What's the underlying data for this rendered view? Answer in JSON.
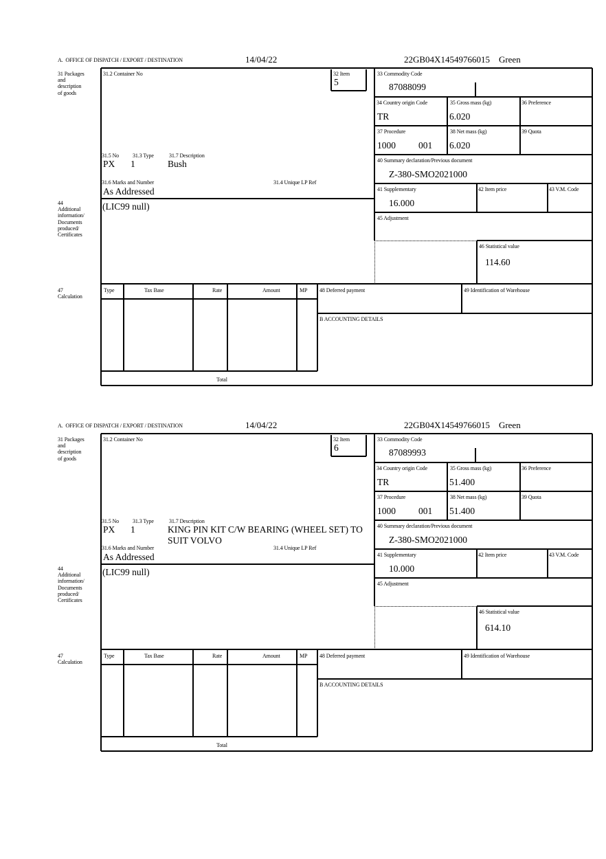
{
  "labels": {
    "office": "A.  OFFICE OF DISPATCH / EXPORT / DESTINATION",
    "packages": "31 Packages\nand\ndescription\nof goods",
    "container_no": "31.2 Container No",
    "item": "32 Item",
    "no": "31.5 No",
    "type": "31.3 Type",
    "description": "31.7 Description",
    "marks": "31.6 Marks and Number",
    "unique_lp_ref": "31.4 Unique LP Ref",
    "additional_info": "44\nAdditional\ninformation/\nDocuments\nproduced/\nCertificates",
    "commodity_code": "33 Commodity Code",
    "country_origin": "34 Country origin Code",
    "gross_mass": "35 Gross mass (kg)",
    "preference": "36 Preference",
    "procedure": "37 Procedure",
    "net_mass": "38 Net mass (kg)",
    "quota": "39 Quota",
    "summary_decl": "40 Summary declaration/Previous document",
    "supplementary": "41 Supplementary",
    "item_price": "42 Item price",
    "vm_code": "43 V.M. Code",
    "adjustment": "45 Adjustment",
    "statistical_value": "46 Statistical value",
    "calculation": "47\nCalculation",
    "calc_type": "Type",
    "calc_tax_base": "Tax Base",
    "calc_rate": "Rate",
    "calc_amount": "Amount",
    "calc_mp": "MP",
    "deferred_payment": "48 Deferred payment",
    "warehouse": "49 Identification of Warehouse",
    "accounting": "B ACCOUNTING DETAILS",
    "total": "Total"
  },
  "forms": [
    {
      "date": "14/04/22",
      "reference": "22GB04X14549766015    Green",
      "item": "5",
      "no": "PX",
      "type": "1",
      "description": "Bush",
      "marks": "As Addressed",
      "additional_info": "(LIC99 null)",
      "commodity_code": "87088099",
      "country_origin": "TR",
      "gross_mass": "6.020",
      "procedure": "1000",
      "procedure_suffix": "001",
      "net_mass": "6.020",
      "summary_decl": "Z-380-SMO2021000",
      "supplementary": "16.000",
      "statistical_value": "114.60"
    },
    {
      "date": "14/04/22",
      "reference": "22GB04X14549766015    Green",
      "item": "6",
      "no": "PX",
      "type": "1",
      "description": "KING PIN KIT C/W BEARING (WHEEL SET) TO\nSUIT VOLVO",
      "marks": "As Addressed",
      "additional_info": "(LIC99 null)",
      "commodity_code": "87089993",
      "country_origin": "TR",
      "gross_mass": "51.400",
      "procedure": "1000",
      "procedure_suffix": "001",
      "net_mass": "51.400",
      "summary_decl": "Z-380-SMO2021000",
      "supplementary": "10.000",
      "statistical_value": "614.10"
    }
  ]
}
